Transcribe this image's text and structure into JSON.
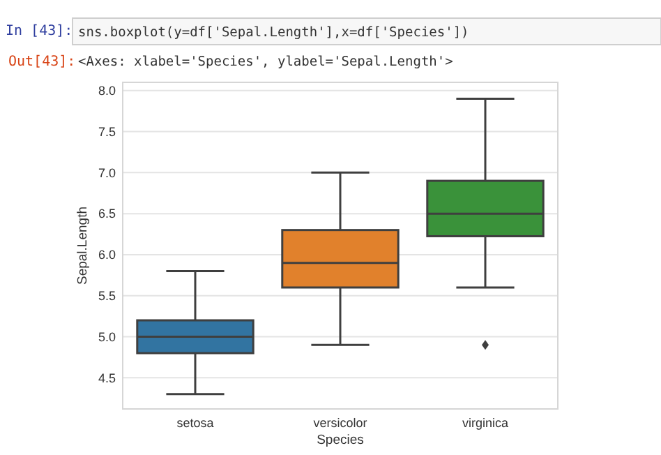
{
  "chart_data": {
    "type": "box",
    "xlabel": "Species",
    "ylabel": "Sepal.Length",
    "categories": [
      "setosa",
      "versicolor",
      "virginica"
    ],
    "colors": [
      "#3274a1",
      "#e1812c",
      "#3a923a"
    ],
    "boxes": [
      {
        "low": 4.3,
        "q1": 4.8,
        "median": 5.0,
        "q3": 5.2,
        "high": 5.8
      },
      {
        "low": 4.9,
        "q1": 5.6,
        "median": 5.9,
        "q3": 6.3,
        "high": 7.0
      },
      {
        "low": 5.6,
        "q1": 6.225,
        "median": 6.5,
        "q3": 6.9,
        "high": 7.9,
        "outliers": [
          4.9
        ]
      }
    ],
    "ylim": [
      4.12,
      8.1
    ],
    "yticks": [
      {
        "value": 4.5,
        "label": "4.5"
      },
      {
        "value": 5,
        "label": "5.0"
      },
      {
        "value": 5.5,
        "label": "5.5"
      },
      {
        "value": 6,
        "label": "6.0"
      },
      {
        "value": 6.5,
        "label": "6.5"
      },
      {
        "value": 7,
        "label": "7.0"
      },
      {
        "value": 7.5,
        "label": "7.5"
      },
      {
        "value": 8,
        "label": "8.0"
      }
    ],
    "grid": "y",
    "annotations": [
      "In  [43]:",
      "sns.boxplot(y=df['Sepal.Length'],x=df['Species'])",
      "Out[43]:",
      "<Axes: xlabel='Species', ylabel='Sepal.Length'>"
    ]
  }
}
